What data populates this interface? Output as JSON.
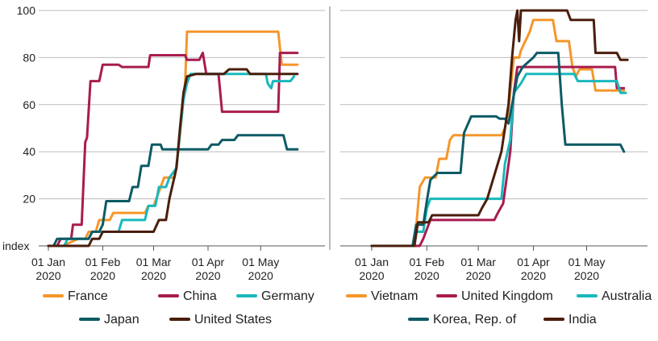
{
  "colors": {
    "orange": "#F5962A",
    "crimson": "#A81C4F",
    "teal": "#19B8BD",
    "darkteal": "#0D5B65",
    "brown": "#4A1E0C",
    "grid": "#bbbbbb",
    "axis": "#555555",
    "panel_divider": "#777777"
  },
  "chart_data": [
    {
      "type": "line",
      "ylim": [
        0,
        100
      ],
      "yticks": [
        0,
        20,
        40,
        60,
        80,
        100
      ],
      "yticklabels": [
        "index",
        "20",
        "40",
        "60",
        "80",
        "100"
      ],
      "x_domain": [
        "2020-01-01",
        "2020-05-28"
      ],
      "xticks": [
        "2020-01-01",
        "2020-02-01",
        "2020-03-01",
        "2020-04-01",
        "2020-05-01"
      ],
      "xticklabels": [
        [
          "01 Jan",
          "2020"
        ],
        [
          "01 Feb",
          "2020"
        ],
        [
          "01 Mar",
          "2020"
        ],
        [
          "01 Apr",
          "2020"
        ],
        [
          "01 May",
          "2020"
        ]
      ],
      "grid": "horizontal",
      "series": [
        {
          "name": "France",
          "color": "#F5962A",
          "legend_row": 0,
          "points": [
            [
              "2020-01-01",
              0
            ],
            [
              "2020-01-10",
              0
            ],
            [
              "2020-01-12",
              1
            ],
            [
              "2020-01-18",
              3
            ],
            [
              "2020-01-22",
              3
            ],
            [
              "2020-01-24",
              6
            ],
            [
              "2020-01-28",
              6
            ],
            [
              "2020-01-30",
              11
            ],
            [
              "2020-02-05",
              11
            ],
            [
              "2020-02-07",
              14
            ],
            [
              "2020-02-25",
              14
            ],
            [
              "2020-02-27",
              17
            ],
            [
              "2020-03-01",
              17
            ],
            [
              "2020-03-03",
              21
            ],
            [
              "2020-03-05",
              25
            ],
            [
              "2020-03-07",
              29
            ],
            [
              "2020-03-13",
              29
            ],
            [
              "2020-03-15",
              40
            ],
            [
              "2020-03-17",
              55
            ],
            [
              "2020-03-19",
              70
            ],
            [
              "2020-03-20",
              91
            ],
            [
              "2020-05-11",
              91
            ],
            [
              "2020-05-13",
              77
            ],
            [
              "2020-05-22",
              77
            ]
          ]
        },
        {
          "name": "China",
          "color": "#A81C4F",
          "legend_row": 0,
          "points": [
            [
              "2020-01-01",
              0
            ],
            [
              "2020-01-06",
              0
            ],
            [
              "2020-01-08",
              3
            ],
            [
              "2020-01-14",
              3
            ],
            [
              "2020-01-15",
              9
            ],
            [
              "2020-01-20",
              9
            ],
            [
              "2020-01-22",
              44
            ],
            [
              "2020-01-23",
              46
            ],
            [
              "2020-01-25",
              70
            ],
            [
              "2020-01-30",
              70
            ],
            [
              "2020-02-01",
              77
            ],
            [
              "2020-02-10",
              77
            ],
            [
              "2020-02-12",
              76
            ],
            [
              "2020-02-27",
              76
            ],
            [
              "2020-02-28",
              81
            ],
            [
              "2020-03-19",
              81
            ],
            [
              "2020-03-20",
              79
            ],
            [
              "2020-03-27",
              79
            ],
            [
              "2020-03-29",
              82
            ],
            [
              "2020-03-31",
              73
            ],
            [
              "2020-04-07",
              73
            ],
            [
              "2020-04-09",
              57
            ],
            [
              "2020-05-11",
              57
            ],
            [
              "2020-05-12",
              82
            ],
            [
              "2020-05-22",
              82
            ]
          ]
        },
        {
          "name": "Germany",
          "color": "#19B8BD",
          "legend_row": 0,
          "points": [
            [
              "2020-01-01",
              0
            ],
            [
              "2020-01-10",
              0
            ],
            [
              "2020-01-12",
              3
            ],
            [
              "2020-01-24",
              3
            ],
            [
              "2020-01-26",
              6
            ],
            [
              "2020-02-10",
              6
            ],
            [
              "2020-02-12",
              11
            ],
            [
              "2020-02-25",
              11
            ],
            [
              "2020-02-27",
              17
            ],
            [
              "2020-03-02",
              17
            ],
            [
              "2020-03-04",
              25
            ],
            [
              "2020-03-08",
              25
            ],
            [
              "2020-03-10",
              29
            ],
            [
              "2020-03-14",
              33
            ],
            [
              "2020-03-16",
              48
            ],
            [
              "2020-03-18",
              62
            ],
            [
              "2020-03-20",
              69
            ],
            [
              "2020-03-22",
              73
            ],
            [
              "2020-05-04",
              73
            ],
            [
              "2020-05-05",
              69
            ],
            [
              "2020-05-07",
              67
            ],
            [
              "2020-05-08",
              70
            ],
            [
              "2020-05-18",
              70
            ],
            [
              "2020-05-20",
              72
            ]
          ]
        },
        {
          "name": "Japan",
          "color": "#0D5B65",
          "legend_row": 1,
          "points": [
            [
              "2020-01-01",
              0
            ],
            [
              "2020-01-04",
              0
            ],
            [
              "2020-01-06",
              3
            ],
            [
              "2020-01-24",
              3
            ],
            [
              "2020-01-26",
              6
            ],
            [
              "2020-01-30",
              6
            ],
            [
              "2020-02-01",
              9
            ],
            [
              "2020-02-03",
              19
            ],
            [
              "2020-02-16",
              19
            ],
            [
              "2020-02-18",
              25
            ],
            [
              "2020-02-21",
              25
            ],
            [
              "2020-02-23",
              34
            ],
            [
              "2020-02-27",
              34
            ],
            [
              "2020-02-29",
              43
            ],
            [
              "2020-03-05",
              43
            ],
            [
              "2020-03-06",
              41
            ],
            [
              "2020-04-01",
              41
            ],
            [
              "2020-04-03",
              43
            ],
            [
              "2020-04-07",
              43
            ],
            [
              "2020-04-09",
              45
            ],
            [
              "2020-04-16",
              45
            ],
            [
              "2020-04-18",
              47
            ],
            [
              "2020-05-14",
              47
            ],
            [
              "2020-05-16",
              41
            ],
            [
              "2020-05-22",
              41
            ]
          ]
        },
        {
          "name": "United States",
          "color": "#4A1E0C",
          "legend_row": 1,
          "points": [
            [
              "2020-01-01",
              0
            ],
            [
              "2020-01-24",
              0
            ],
            [
              "2020-01-26",
              3
            ],
            [
              "2020-01-30",
              3
            ],
            [
              "2020-02-01",
              6
            ],
            [
              "2020-03-01",
              6
            ],
            [
              "2020-03-04",
              11
            ],
            [
              "2020-03-08",
              11
            ],
            [
              "2020-03-10",
              20
            ],
            [
              "2020-03-14",
              33
            ],
            [
              "2020-03-16",
              50
            ],
            [
              "2020-03-18",
              65
            ],
            [
              "2020-03-20",
              72
            ],
            [
              "2020-03-25",
              73
            ],
            [
              "2020-04-10",
              73
            ],
            [
              "2020-04-13",
              75
            ],
            [
              "2020-04-23",
              75
            ],
            [
              "2020-04-25",
              73
            ],
            [
              "2020-05-22",
              73
            ]
          ]
        }
      ]
    },
    {
      "type": "line",
      "ylim": [
        0,
        100
      ],
      "yticks": [
        0,
        20,
        40,
        60,
        80,
        100
      ],
      "x_domain": [
        "2020-01-01",
        "2020-05-28"
      ],
      "xticks": [
        "2020-01-01",
        "2020-02-01",
        "2020-03-01",
        "2020-04-01",
        "2020-05-01"
      ],
      "xticklabels": [
        [
          "01 Jan",
          "2020"
        ],
        [
          "01 Feb",
          "2020"
        ],
        [
          "01 Mar",
          "2020"
        ],
        [
          "01 Apr",
          "2020"
        ],
        [
          "01 May",
          "2020"
        ]
      ],
      "grid": "horizontal",
      "series": [
        {
          "name": "Vietnam",
          "color": "#F5962A",
          "legend_row": 0,
          "points": [
            [
              "2020-01-01",
              0
            ],
            [
              "2020-01-24",
              0
            ],
            [
              "2020-01-26",
              8
            ],
            [
              "2020-01-28",
              25
            ],
            [
              "2020-01-31",
              29
            ],
            [
              "2020-02-06",
              29
            ],
            [
              "2020-02-08",
              37
            ],
            [
              "2020-02-12",
              37
            ],
            [
              "2020-02-14",
              45
            ],
            [
              "2020-02-16",
              47
            ],
            [
              "2020-03-14",
              47
            ],
            [
              "2020-03-16",
              50
            ],
            [
              "2020-03-18",
              58
            ],
            [
              "2020-03-21",
              80
            ],
            [
              "2020-03-24",
              80
            ],
            [
              "2020-03-25",
              83
            ],
            [
              "2020-03-30",
              91
            ],
            [
              "2020-04-01",
              96
            ],
            [
              "2020-04-12",
              96
            ],
            [
              "2020-04-14",
              87
            ],
            [
              "2020-04-21",
              87
            ],
            [
              "2020-04-23",
              76
            ],
            [
              "2020-04-25",
              72
            ],
            [
              "2020-04-27",
              75
            ],
            [
              "2020-05-04",
              75
            ],
            [
              "2020-05-06",
              66
            ],
            [
              "2020-05-22",
              66
            ]
          ]
        },
        {
          "name": "United Kingdom",
          "color": "#A81C4F",
          "legend_row": 0,
          "points": [
            [
              "2020-01-01",
              0
            ],
            [
              "2020-01-28",
              0
            ],
            [
              "2020-01-30",
              3
            ],
            [
              "2020-02-03",
              11
            ],
            [
              "2020-03-10",
              11
            ],
            [
              "2020-03-12",
              14
            ],
            [
              "2020-03-15",
              18
            ],
            [
              "2020-03-19",
              40
            ],
            [
              "2020-03-21",
              65
            ],
            [
              "2020-03-23",
              76
            ],
            [
              "2020-05-17",
              76
            ],
            [
              "2020-05-18",
              67
            ],
            [
              "2020-05-22",
              67
            ]
          ]
        },
        {
          "name": "Australia",
          "color": "#19B8BD",
          "legend_row": 0,
          "points": [
            [
              "2020-01-01",
              0
            ],
            [
              "2020-01-24",
              0
            ],
            [
              "2020-01-26",
              6
            ],
            [
              "2020-01-30",
              6
            ],
            [
              "2020-02-01",
              16
            ],
            [
              "2020-02-03",
              20
            ],
            [
              "2020-03-14",
              20
            ],
            [
              "2020-03-16",
              35
            ],
            [
              "2020-03-19",
              45
            ],
            [
              "2020-03-21",
              65
            ],
            [
              "2020-03-25",
              69
            ],
            [
              "2020-03-28",
              73
            ],
            [
              "2020-04-24",
              73
            ],
            [
              "2020-04-26",
              70
            ],
            [
              "2020-05-18",
              70
            ],
            [
              "2020-05-20",
              65
            ],
            [
              "2020-05-23",
              65
            ]
          ]
        },
        {
          "name": "Korea, Rep. of",
          "color": "#0D5B65",
          "legend_row": 1,
          "points": [
            [
              "2020-01-01",
              0
            ],
            [
              "2020-01-24",
              0
            ],
            [
              "2020-01-26",
              9
            ],
            [
              "2020-01-30",
              9
            ],
            [
              "2020-02-01",
              19
            ],
            [
              "2020-02-03",
              28
            ],
            [
              "2020-02-07",
              31
            ],
            [
              "2020-02-20",
              31
            ],
            [
              "2020-02-22",
              48
            ],
            [
              "2020-02-26",
              55
            ],
            [
              "2020-03-11",
              55
            ],
            [
              "2020-03-13",
              54
            ],
            [
              "2020-03-16",
              54
            ],
            [
              "2020-03-18",
              52
            ],
            [
              "2020-03-20",
              60
            ],
            [
              "2020-03-23",
              72
            ],
            [
              "2020-03-26",
              76
            ],
            [
              "2020-04-01",
              80
            ],
            [
              "2020-04-03",
              82
            ],
            [
              "2020-04-15",
              82
            ],
            [
              "2020-04-17",
              60
            ],
            [
              "2020-04-19",
              43
            ],
            [
              "2020-05-20",
              43
            ],
            [
              "2020-05-22",
              40
            ]
          ]
        },
        {
          "name": "India",
          "color": "#4A1E0C",
          "legend_row": 1,
          "points": [
            [
              "2020-01-01",
              0
            ],
            [
              "2020-01-25",
              0
            ],
            [
              "2020-01-27",
              10
            ],
            [
              "2020-02-02",
              10
            ],
            [
              "2020-02-04",
              13
            ],
            [
              "2020-03-01",
              13
            ],
            [
              "2020-03-03",
              16
            ],
            [
              "2020-03-06",
              20
            ],
            [
              "2020-03-10",
              30
            ],
            [
              "2020-03-14",
              40
            ],
            [
              "2020-03-18",
              60
            ],
            [
              "2020-03-20",
              80
            ],
            [
              "2020-03-22",
              96
            ],
            [
              "2020-03-23",
              100
            ],
            [
              "2020-03-24",
              87
            ],
            [
              "2020-03-25",
              100
            ],
            [
              "2020-04-20",
              100
            ],
            [
              "2020-04-22",
              96
            ],
            [
              "2020-05-05",
              96
            ],
            [
              "2020-05-06",
              82
            ],
            [
              "2020-05-18",
              82
            ],
            [
              "2020-05-20",
              79
            ],
            [
              "2020-05-24",
              79
            ]
          ]
        }
      ]
    }
  ]
}
